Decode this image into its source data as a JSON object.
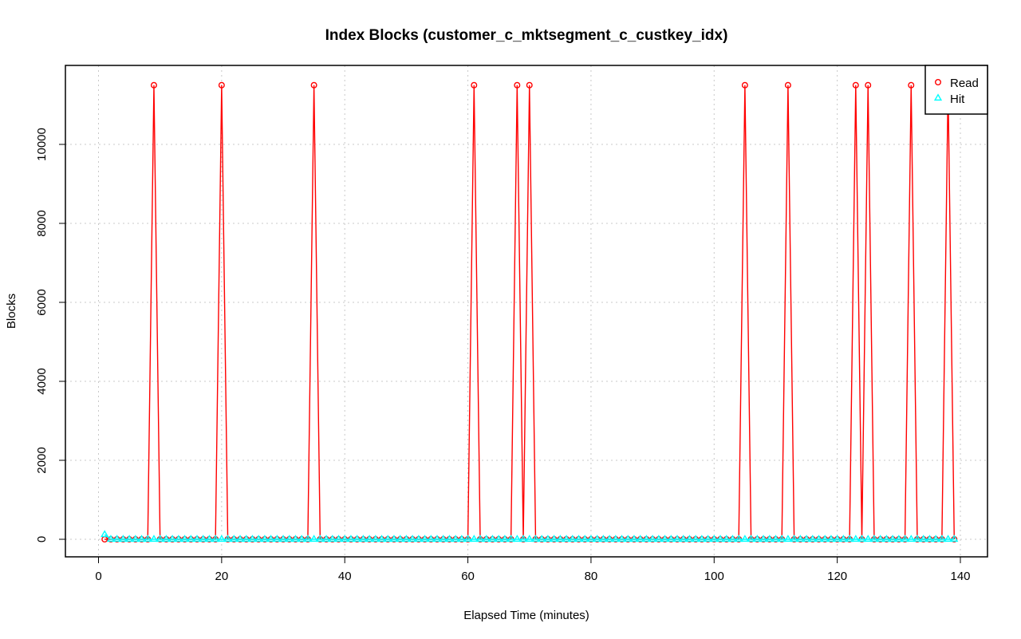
{
  "chart_data": {
    "type": "line",
    "title": "Index Blocks (customer_c_mktsegment_c_custkey_idx)",
    "xlabel": "Elapsed Time (minutes)",
    "ylabel": "Blocks",
    "xlim": [
      0,
      139
    ],
    "ylim": [
      0,
      11500
    ],
    "xticks": [
      0,
      20,
      40,
      60,
      80,
      100,
      120,
      140
    ],
    "yticks": [
      0,
      2000,
      4000,
      6000,
      8000,
      10000
    ],
    "grid": true,
    "legend_position": "top-right",
    "x_start": 1,
    "x_end": 139,
    "series": [
      {
        "name": "Read",
        "color": "#ff0000",
        "marker": "circle",
        "baseline": 0,
        "peaks": [
          [
            9,
            11500
          ],
          [
            20,
            11500
          ],
          [
            35,
            11500
          ],
          [
            61,
            11500
          ],
          [
            68,
            11500
          ],
          [
            70,
            11500
          ],
          [
            105,
            11500
          ],
          [
            112,
            11500
          ],
          [
            123,
            11500
          ],
          [
            125,
            11500
          ],
          [
            132,
            11500
          ],
          [
            138,
            11500
          ]
        ]
      },
      {
        "name": "Hit",
        "color": "#00ffff",
        "marker": "triangle",
        "baseline": 0,
        "peaks": [
          [
            1,
            120
          ]
        ]
      }
    ]
  }
}
